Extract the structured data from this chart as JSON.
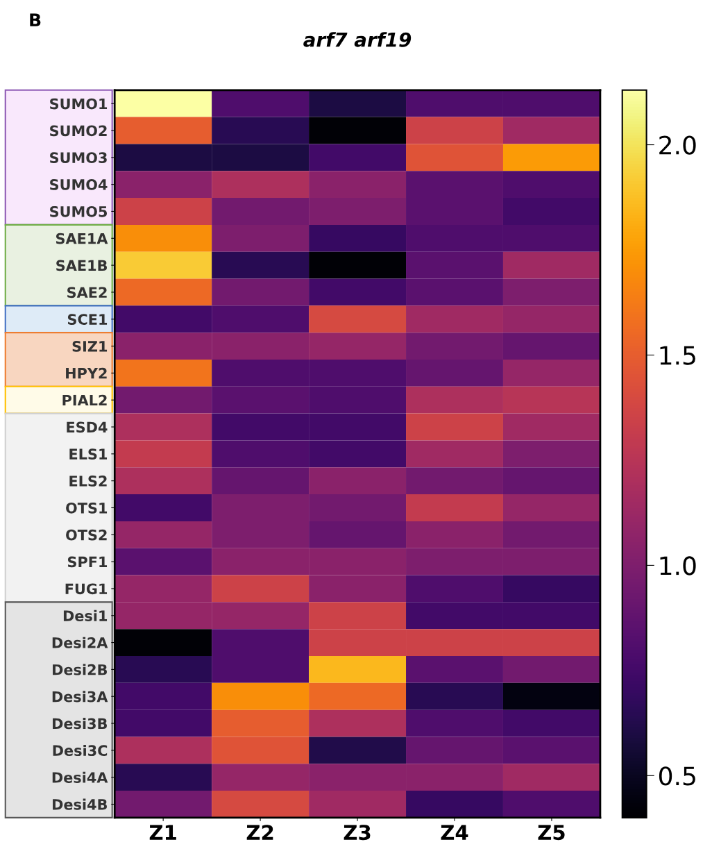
{
  "chart_data": {
    "type": "heatmap",
    "title": "arf7 arf19",
    "annotations": [
      "B"
    ],
    "categories": [
      "Z1",
      "Z2",
      "Z3",
      "Z4",
      "Z5"
    ],
    "y_categories": [
      "SUMO1",
      "SUMO2",
      "SUMO3",
      "SUMO4",
      "SUMO5",
      "SAE1A",
      "SAE1B",
      "SAE2",
      "SCE1",
      "SIZ1",
      "HPY2",
      "PIAL2",
      "ESD4",
      "ELS1",
      "ELS2",
      "OTS1",
      "OTS2",
      "SPF1",
      "FUG1",
      "Desi1",
      "Desi2A",
      "Desi2B",
      "Desi3A",
      "Desi3B",
      "Desi3C",
      "Desi4A",
      "Desi4B"
    ],
    "cells": [
      [
        2.13,
        0.8,
        0.6,
        0.8,
        0.8
      ],
      [
        1.5,
        0.65,
        0.42,
        1.35,
        1.15
      ],
      [
        0.6,
        0.6,
        0.75,
        1.45,
        1.75
      ],
      [
        1.05,
        1.2,
        1.05,
        0.85,
        0.8
      ],
      [
        1.35,
        0.95,
        1.0,
        0.85,
        0.75
      ],
      [
        1.7,
        1.0,
        0.7,
        0.8,
        0.8
      ],
      [
        1.92,
        0.65,
        0.42,
        0.85,
        1.15
      ],
      [
        1.55,
        0.95,
        0.75,
        0.85,
        1.0
      ],
      [
        0.75,
        0.8,
        1.4,
        1.15,
        1.1
      ],
      [
        1.05,
        1.05,
        1.1,
        0.95,
        0.9
      ],
      [
        1.6,
        0.8,
        0.8,
        0.9,
        1.1
      ],
      [
        0.95,
        0.85,
        0.8,
        1.2,
        1.25
      ],
      [
        1.2,
        0.75,
        0.75,
        1.35,
        1.15
      ],
      [
        1.3,
        0.8,
        0.75,
        1.15,
        1.0
      ],
      [
        1.2,
        0.9,
        1.05,
        0.95,
        0.9
      ],
      [
        0.75,
        1.0,
        0.95,
        1.3,
        1.1
      ],
      [
        1.1,
        1.0,
        0.9,
        1.05,
        0.95
      ],
      [
        0.85,
        1.05,
        1.05,
        1.0,
        1.0
      ],
      [
        1.1,
        1.35,
        1.05,
        0.8,
        0.7
      ],
      [
        1.1,
        1.1,
        1.35,
        0.75,
        0.75
      ],
      [
        0.42,
        0.8,
        1.35,
        1.35,
        1.35
      ],
      [
        0.65,
        0.8,
        1.85,
        0.85,
        0.95
      ],
      [
        0.75,
        1.7,
        1.55,
        0.65,
        0.45
      ],
      [
        0.75,
        1.5,
        1.2,
        0.8,
        0.75
      ],
      [
        1.2,
        1.45,
        0.62,
        0.9,
        0.85
      ],
      [
        0.65,
        1.1,
        1.05,
        1.05,
        1.15
      ],
      [
        0.95,
        1.4,
        1.15,
        0.7,
        0.8
      ]
    ],
    "clim": [
      0.4,
      2.13
    ],
    "cticks": [
      0.5,
      {
        "value": 1,
        "label": "1.0"
      },
      1.5,
      {
        "value": 2,
        "label": "2.0"
      }
    ]
  }
}
